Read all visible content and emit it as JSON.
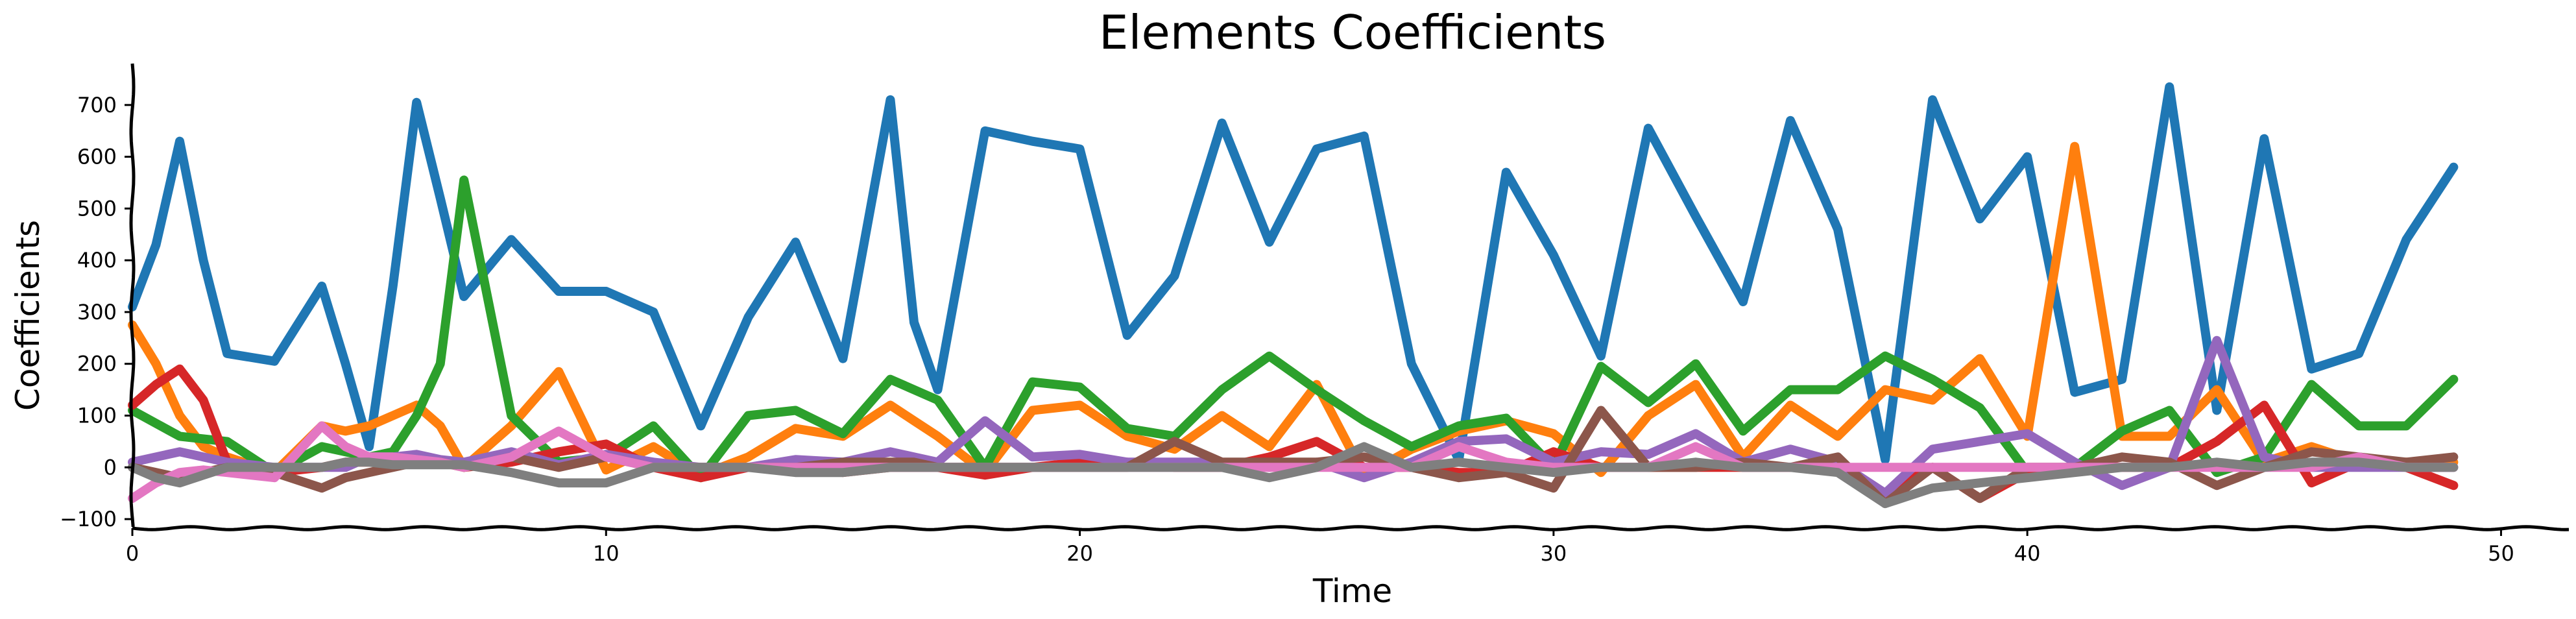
{
  "chart_data": {
    "type": "line",
    "title": "Elements Coefficients",
    "xlabel": "Time",
    "ylabel": "Coefficients",
    "xlim": [
      0,
      51.5
    ],
    "ylim": [
      -120,
      780
    ],
    "xticks": [
      0,
      10,
      20,
      30,
      40,
      50
    ],
    "yticks": [
      -100,
      0,
      100,
      200,
      300,
      400,
      500,
      600,
      700
    ],
    "grid": false,
    "legend": "none",
    "x": [
      0,
      0.5,
      1,
      1.5,
      2,
      3,
      4,
      4.5,
      5,
      5.5,
      6,
      6.5,
      7,
      8,
      9,
      10,
      11,
      12,
      13,
      14,
      15,
      16,
      16.5,
      17,
      18,
      19,
      20,
      21,
      22,
      23,
      24,
      25,
      26,
      27,
      28,
      29,
      30,
      31,
      32,
      33,
      34,
      35,
      36,
      37,
      38,
      39,
      40,
      41,
      42,
      43,
      44,
      45,
      46,
      47,
      48,
      49
    ],
    "series": [
      {
        "color": "#1f77b4",
        "values": [
          310,
          430,
          630,
          400,
          220,
          205,
          350,
          200,
          40,
          350,
          705,
          520,
          330,
          440,
          340,
          340,
          300,
          80,
          290,
          435,
          210,
          710,
          280,
          150,
          650,
          630,
          615,
          255,
          370,
          665,
          435,
          615,
          640,
          200,
          15,
          570,
          410,
          215,
          655,
          485,
          320,
          670,
          460,
          15,
          710,
          480,
          600,
          145,
          170,
          735,
          110,
          635,
          190,
          220,
          440,
          580
        ]
      },
      {
        "color": "#ff7f0e",
        "values": [
          275,
          200,
          100,
          40,
          20,
          -10,
          80,
          70,
          80,
          100,
          120,
          80,
          0,
          80,
          185,
          -5,
          40,
          -15,
          20,
          75,
          60,
          120,
          90,
          60,
          -10,
          110,
          120,
          60,
          35,
          100,
          40,
          160,
          -15,
          35,
          70,
          90,
          65,
          -10,
          100,
          160,
          20,
          120,
          60,
          150,
          130,
          210,
          60,
          620,
          60,
          60,
          150,
          10,
          40,
          10,
          10,
          10
        ]
      },
      {
        "color": "#2ca02c",
        "values": [
          110,
          85,
          60,
          55,
          50,
          -10,
          40,
          30,
          20,
          30,
          100,
          200,
          555,
          100,
          10,
          20,
          80,
          -20,
          100,
          110,
          65,
          170,
          150,
          130,
          0,
          165,
          155,
          75,
          60,
          150,
          215,
          150,
          90,
          40,
          80,
          95,
          0,
          195,
          125,
          200,
          70,
          150,
          150,
          215,
          170,
          115,
          -10,
          0,
          70,
          110,
          -10,
          20,
          160,
          80,
          80,
          170
        ]
      },
      {
        "color": "#d62728",
        "values": [
          120,
          160,
          190,
          130,
          10,
          -10,
          0,
          10,
          10,
          10,
          10,
          10,
          0,
          10,
          30,
          45,
          0,
          -20,
          0,
          10,
          -10,
          0,
          0,
          0,
          -15,
          0,
          10,
          10,
          0,
          0,
          20,
          50,
          0,
          0,
          -10,
          -10,
          30,
          0,
          0,
          0,
          0,
          0,
          0,
          -50,
          0,
          -60,
          -10,
          0,
          0,
          0,
          50,
          120,
          -30,
          10,
          0,
          -35
        ]
      },
      {
        "color": "#9467bd",
        "values": [
          10,
          20,
          30,
          20,
          10,
          0,
          0,
          0,
          20,
          20,
          25,
          15,
          10,
          30,
          5,
          25,
          10,
          0,
          0,
          15,
          10,
          30,
          20,
          10,
          90,
          20,
          25,
          10,
          10,
          10,
          0,
          10,
          -20,
          10,
          50,
          55,
          10,
          30,
          25,
          65,
          10,
          35,
          10,
          -50,
          35,
          50,
          65,
          10,
          -35,
          0,
          245,
          20,
          0,
          0,
          0,
          0
        ]
      },
      {
        "color": "#8c564b",
        "values": [
          0,
          -10,
          -20,
          -10,
          0,
          -10,
          -40,
          -20,
          -10,
          0,
          10,
          10,
          0,
          20,
          0,
          20,
          0,
          0,
          0,
          0,
          10,
          10,
          10,
          0,
          0,
          0,
          0,
          0,
          50,
          10,
          10,
          10,
          20,
          0,
          -20,
          -10,
          -40,
          110,
          0,
          0,
          10,
          0,
          20,
          -70,
          0,
          -60,
          0,
          0,
          20,
          10,
          -35,
          0,
          30,
          20,
          10,
          20
        ]
      },
      {
        "color": "#e377c2",
        "values": [
          -60,
          -30,
          -10,
          -5,
          -10,
          -20,
          80,
          40,
          20,
          20,
          15,
          10,
          0,
          20,
          70,
          20,
          0,
          0,
          0,
          0,
          0,
          0,
          0,
          0,
          0,
          0,
          0,
          0,
          0,
          0,
          0,
          0,
          0,
          0,
          40,
          10,
          0,
          0,
          0,
          40,
          0,
          0,
          0,
          0,
          0,
          0,
          0,
          0,
          0,
          0,
          0,
          0,
          0,
          20,
          0,
          0
        ]
      },
      {
        "color": "#7f7f7f",
        "values": [
          0,
          -20,
          -30,
          -15,
          0,
          0,
          0,
          10,
          10,
          5,
          5,
          5,
          5,
          -10,
          -30,
          -30,
          0,
          0,
          0,
          -10,
          -10,
          0,
          0,
          0,
          0,
          0,
          0,
          0,
          0,
          0,
          -20,
          0,
          40,
          0,
          10,
          0,
          -10,
          0,
          0,
          10,
          0,
          0,
          -10,
          -70,
          -40,
          -30,
          -20,
          -10,
          0,
          0,
          10,
          0,
          10,
          10,
          0,
          0
        ]
      }
    ]
  }
}
